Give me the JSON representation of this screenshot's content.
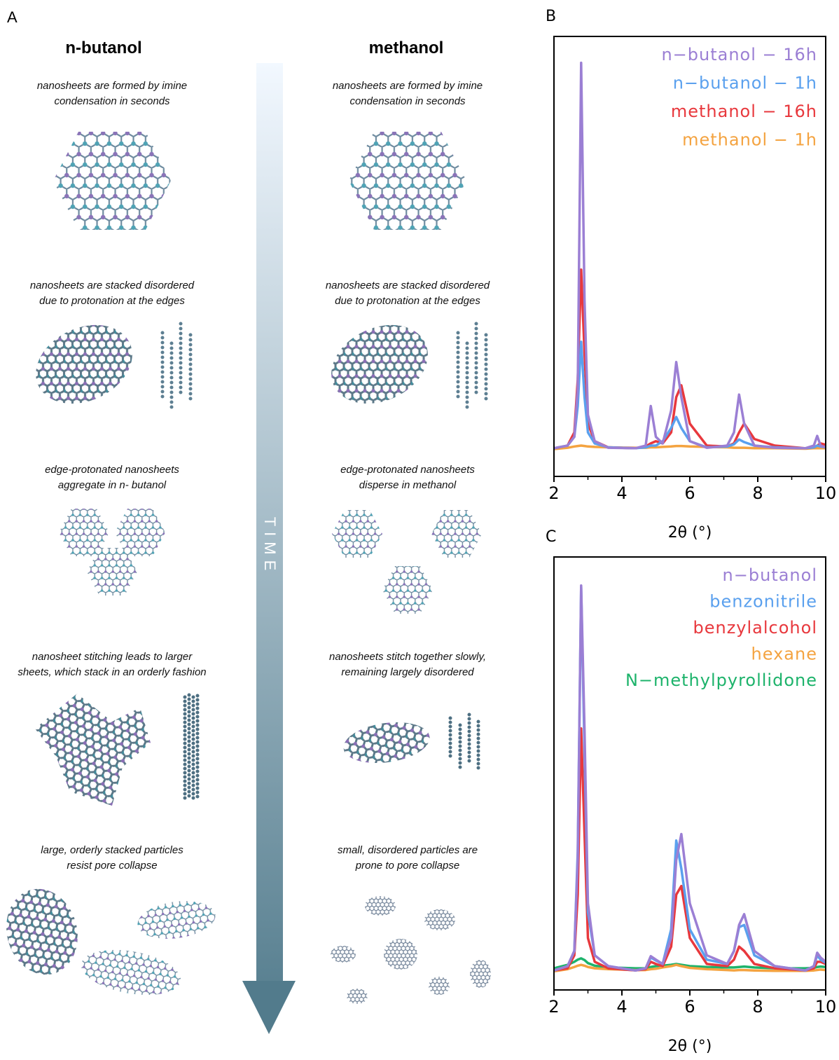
{
  "panel_a": {
    "label": "A",
    "columns": [
      "n-butanol",
      "methanol"
    ],
    "arrow_label": "TIME",
    "steps": [
      {
        "left": [
          "nanosheets are formed by imine",
          "condensation in seconds"
        ],
        "right": [
          "nanosheets are formed by imine",
          "condensation in seconds"
        ]
      },
      {
        "left": [
          "nanosheets are stacked disordered",
          "due to protonation at the edges"
        ],
        "right": [
          "nanosheets are stacked disordered",
          "due to protonation at the edges"
        ]
      },
      {
        "left": [
          "edge-protonated nanosheets",
          "aggregate in n- butanol"
        ],
        "right": [
          "edge-protonated nanosheets",
          "disperse in methanol"
        ]
      },
      {
        "left": [
          "nanosheet stitching leads to larger",
          "sheets, which stack in an orderly fashion"
        ],
        "right": [
          "nanosheets stitch together slowly,",
          "remaining largely disordered"
        ]
      },
      {
        "left": [
          "large, orderly stacked particles",
          "resist pore collapse"
        ],
        "right": [
          "small, disordered particles are",
          "prone to pore collapse"
        ]
      }
    ]
  },
  "chart_data": [
    {
      "type": "line",
      "label": "B",
      "xlabel": "2θ (°)",
      "xlim": [
        2,
        10
      ],
      "xticks": [
        2,
        4,
        6,
        8,
        10
      ],
      "xminorticks": [
        3,
        5,
        7,
        9
      ],
      "ylim": [
        0,
        100
      ],
      "x": [
        2,
        2.4,
        2.6,
        2.7,
        2.8,
        2.9,
        3.0,
        3.2,
        3.6,
        4.4,
        4.7,
        4.85,
        5.0,
        5.2,
        5.45,
        5.6,
        5.75,
        6.0,
        6.5,
        7.1,
        7.3,
        7.45,
        7.6,
        7.9,
        8.5,
        9.4,
        9.65,
        9.75,
        9.85,
        10
      ],
      "series": [
        {
          "name": "n−butanol − 16h",
          "color": "#9b7fd4",
          "values": [
            6.4,
            7,
            9,
            20,
            94,
            40,
            14,
            8,
            6.5,
            6.4,
            7,
            16,
            9,
            7.5,
            15,
            26,
            18,
            8,
            6.5,
            7,
            10,
            18.6,
            12,
            7,
            6.5,
            6.4,
            7,
            9.2,
            7,
            6.6
          ]
        },
        {
          "name": "n−butanol − 1h",
          "color": "#5aa0ee",
          "values": [
            6.4,
            7,
            9,
            16,
            30.6,
            18,
            10,
            7.5,
            6.6,
            6.4,
            6.6,
            7,
            7,
            8,
            11,
            13.5,
            11,
            8,
            6.6,
            6.8,
            7.3,
            8.4,
            7.8,
            7,
            6.6,
            6.4,
            6.6,
            7,
            6.8,
            6.6
          ]
        },
        {
          "name": "methanol − 16h",
          "color": "#e8383d",
          "values": [
            6.4,
            7,
            10,
            22,
            47,
            28,
            12,
            8,
            6.6,
            6.4,
            6.8,
            7.5,
            8,
            7.5,
            10,
            18,
            20.7,
            12,
            7,
            6.8,
            7.5,
            10,
            12,
            8.5,
            7,
            6.4,
            6.6,
            7,
            7.5,
            7.2
          ]
        },
        {
          "name": "methanol − 1h",
          "color": "#f4a340",
          "values": [
            6.2,
            6.5,
            6.8,
            6.9,
            7.0,
            6.9,
            6.8,
            6.7,
            6.6,
            6.5,
            6.5,
            6.6,
            6.6,
            6.7,
            6.8,
            6.9,
            6.9,
            6.8,
            6.7,
            6.6,
            6.5,
            6.5,
            6.5,
            6.4,
            6.4,
            6.3,
            6.4,
            6.4,
            6.4,
            6.4
          ]
        }
      ]
    },
    {
      "type": "line",
      "label": "C",
      "xlabel": "2θ (°)",
      "xlim": [
        2,
        10
      ],
      "xticks": [
        2,
        4,
        6,
        8,
        10
      ],
      "xminorticks": [
        3,
        5,
        7,
        9
      ],
      "ylim": [
        0,
        100
      ],
      "x": [
        2,
        2.4,
        2.6,
        2.7,
        2.8,
        2.9,
        3.0,
        3.2,
        3.6,
        4.4,
        4.7,
        4.85,
        5.0,
        5.2,
        5.45,
        5.6,
        5.75,
        6.0,
        6.5,
        7.1,
        7.3,
        7.45,
        7.6,
        7.9,
        8.5,
        9.4,
        9.65,
        9.75,
        9.85,
        10
      ],
      "series": [
        {
          "name": "n−butanol",
          "color": "#9b7fd4",
          "values": [
            4.5,
            5.5,
            9,
            30,
            93.4,
            60,
            20,
            8,
            5.5,
            4.5,
            5,
            7.8,
            7,
            6,
            12,
            30,
            36,
            20,
            8,
            6,
            9,
            15,
            17.5,
            9,
            5.5,
            4.5,
            5.5,
            8.6,
            7.5,
            6.5
          ]
        },
        {
          "name": "benzonitrile",
          "color": "#5aa0ee",
          "values": [
            4.5,
            5.5,
            9,
            32,
            93,
            55,
            18,
            8,
            5.5,
            4.5,
            5,
            7.5,
            6.8,
            6,
            14,
            34.5,
            28,
            14,
            7,
            6,
            9,
            14.5,
            15,
            8,
            5.5,
            4.5,
            5.5,
            8,
            7,
            6.3
          ]
        },
        {
          "name": "benzylalcohol",
          "color": "#e8383d",
          "values": [
            4.5,
            5,
            8,
            22,
            60.4,
            36,
            12,
            6.5,
            5,
            4.5,
            4.8,
            6.5,
            6,
            5.5,
            10,
            22,
            24,
            12,
            6,
            5.5,
            7,
            10,
            9,
            6,
            5,
            4.5,
            5,
            6.5,
            6.5,
            6
          ]
        },
        {
          "name": "hexane",
          "color": "#f4a340",
          "values": [
            4.3,
            4.8,
            5.3,
            5.6,
            5.8,
            5.6,
            5.3,
            5,
            4.8,
            4.6,
            4.6,
            4.8,
            4.9,
            5.2,
            5.5,
            5.8,
            5.5,
            5.1,
            4.8,
            4.6,
            4.5,
            4.6,
            4.6,
            4.5,
            4.4,
            4.4,
            4.5,
            4.6,
            4.7,
            4.6
          ]
        },
        {
          "name": "N−methylpyrollidone",
          "color": "#1db36b",
          "values": [
            5,
            5.8,
            6.5,
            7,
            7.3,
            6.9,
            6.2,
            5.6,
            5.2,
            5,
            5,
            5.3,
            5.5,
            5.6,
            5.8,
            6,
            5.8,
            5.5,
            5.3,
            5.2,
            5.2,
            5.3,
            5.4,
            5.2,
            5,
            5,
            5.1,
            5.3,
            5.4,
            5.3
          ]
        }
      ]
    }
  ]
}
